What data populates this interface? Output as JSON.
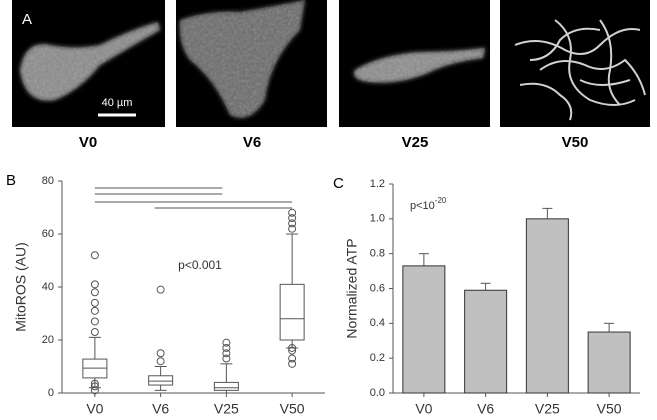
{
  "panel_a": {
    "label": "A",
    "scale_bar": "40 µm",
    "images": [
      "V0",
      "V6",
      "V25",
      "V50"
    ]
  },
  "chart_data": [
    {
      "type": "box",
      "label": "B",
      "ylabel": "MitoROS (AU)",
      "annotation": "p<0.001",
      "categories": [
        "V0",
        "V6",
        "V25",
        "V50"
      ],
      "boxes": [
        {
          "whislo": 2,
          "q1": 5.7,
          "med": 9.4,
          "q3": 12.8,
          "whishi": 21,
          "fliers": [
            1,
            2.5,
            3.5,
            23,
            27,
            31,
            34,
            38,
            41,
            52
          ]
        },
        {
          "whislo": 1,
          "q1": 3,
          "med": 4.5,
          "q3": 6.5,
          "whishi": 10,
          "fliers": [
            12,
            15,
            39
          ]
        },
        {
          "whislo": 0,
          "q1": 1,
          "med": 2,
          "q3": 4,
          "whishi": 11,
          "fliers": [
            13,
            15,
            17,
            19
          ]
        },
        {
          "whislo": 17,
          "q1": 20,
          "med": 28,
          "q3": 41,
          "whishi": 60,
          "fliers": [
            11,
            13,
            16,
            17,
            62,
            64,
            66,
            68
          ]
        }
      ],
      "ylim": [
        0,
        80
      ],
      "yticks": [
        0,
        20,
        40,
        60,
        80
      ]
    },
    {
      "type": "bar",
      "label": "C",
      "ylabel": "Normalized ATP",
      "annotation": {
        "base": "p<10",
        "exponent": "-20"
      },
      "categories": [
        "V0",
        "V6",
        "V25",
        "V50"
      ],
      "values": [
        0.73,
        0.59,
        1.0,
        0.35
      ],
      "errors": [
        0.07,
        0.04,
        0.06,
        0.05
      ],
      "color": "#c0c0c0",
      "ylim": [
        0,
        1.2
      ],
      "yticks": [
        {
          "value": 0,
          "label": "0.0"
        },
        {
          "value": 0.2,
          "label": "0.2"
        },
        {
          "value": 0.4,
          "label": "0.4"
        },
        {
          "value": 0.6,
          "label": "0.6"
        },
        {
          "value": 0.8,
          "label": "0.8"
        },
        {
          "value": 1,
          "label": "1.0"
        },
        {
          "value": 1.2,
          "label": "1.2"
        }
      ]
    }
  ]
}
